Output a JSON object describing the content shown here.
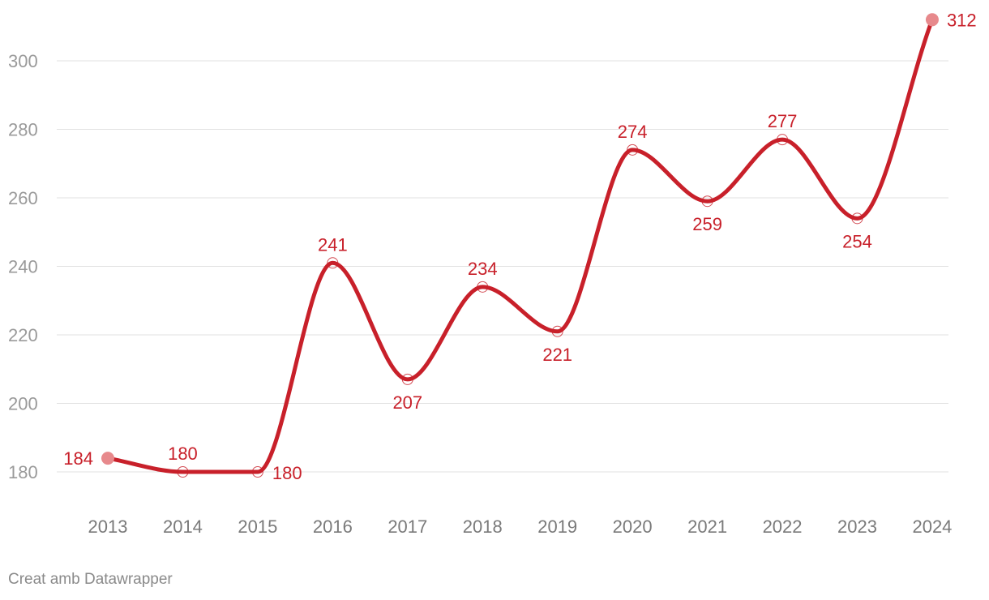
{
  "chart_data": {
    "type": "line",
    "title": "",
    "xlabel": "",
    "ylabel": "",
    "x": [
      "2013",
      "2014",
      "2015",
      "2016",
      "2017",
      "2018",
      "2019",
      "2020",
      "2021",
      "2022",
      "2023",
      "2024"
    ],
    "series": [
      {
        "values": [
          184,
          180,
          180,
          241,
          207,
          234,
          221,
          274,
          259,
          277,
          254,
          312
        ]
      }
    ],
    "ylim": [
      172,
      316
    ],
    "yticks": [
      180,
      200,
      220,
      240,
      260,
      280,
      300
    ],
    "grid": true,
    "legend": "none",
    "line_color": "#c8202a",
    "label_color": "#c8202a",
    "endpoint_marker_color": "#e7898c"
  },
  "credit": "Creat amb Datawrapper"
}
